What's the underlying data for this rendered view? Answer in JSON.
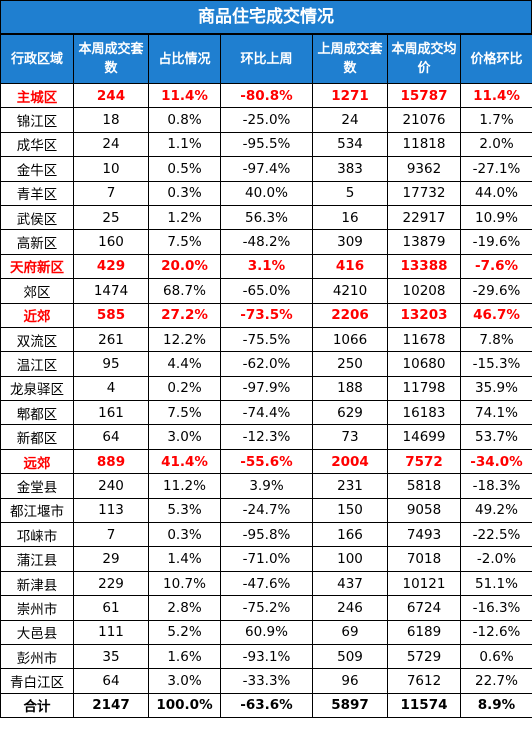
{
  "title": "商品住宅成交情况",
  "headers": [
    "行政区域",
    "本周成交套数",
    "占比情况",
    "环比上周",
    "上周成交套数",
    "本周成交均价",
    "价格环比"
  ],
  "rows": [
    {
      "name": "主城区",
      "units": "244",
      "share": "11.4%",
      "wow": "-80.8%",
      "last_units": "1271",
      "avg_price": "15787",
      "price_chg": "11.4%",
      "highlight": true
    },
    {
      "name": "锦江区",
      "units": "18",
      "share": "0.8%",
      "wow": "-25.0%",
      "last_units": "24",
      "avg_price": "21076",
      "price_chg": "1.7%",
      "highlight": false
    },
    {
      "name": "成华区",
      "units": "24",
      "share": "1.1%",
      "wow": "-95.5%",
      "last_units": "534",
      "avg_price": "11818",
      "price_chg": "2.0%",
      "highlight": false
    },
    {
      "name": "金牛区",
      "units": "10",
      "share": "0.5%",
      "wow": "-97.4%",
      "last_units": "383",
      "avg_price": "9362",
      "price_chg": "-27.1%",
      "highlight": false
    },
    {
      "name": "青羊区",
      "units": "7",
      "share": "0.3%",
      "wow": "40.0%",
      "last_units": "5",
      "avg_price": "17732",
      "price_chg": "44.0%",
      "highlight": false
    },
    {
      "name": "武侯区",
      "units": "25",
      "share": "1.2%",
      "wow": "56.3%",
      "last_units": "16",
      "avg_price": "22917",
      "price_chg": "10.9%",
      "highlight": false
    },
    {
      "name": "高新区",
      "units": "160",
      "share": "7.5%",
      "wow": "-48.2%",
      "last_units": "309",
      "avg_price": "13879",
      "price_chg": "-19.6%",
      "highlight": false
    },
    {
      "name": "天府新区",
      "units": "429",
      "share": "20.0%",
      "wow": "3.1%",
      "last_units": "416",
      "avg_price": "13388",
      "price_chg": "-7.6%",
      "highlight": true
    },
    {
      "name": "郊区",
      "units": "1474",
      "share": "68.7%",
      "wow": "-65.0%",
      "last_units": "4210",
      "avg_price": "10208",
      "price_chg": "-29.6%",
      "highlight": false
    },
    {
      "name": "近郊",
      "units": "585",
      "share": "27.2%",
      "wow": "-73.5%",
      "last_units": "2206",
      "avg_price": "13203",
      "price_chg": "46.7%",
      "highlight": true
    },
    {
      "name": "双流区",
      "units": "261",
      "share": "12.2%",
      "wow": "-75.5%",
      "last_units": "1066",
      "avg_price": "11678",
      "price_chg": "7.8%",
      "highlight": false
    },
    {
      "name": "温江区",
      "units": "95",
      "share": "4.4%",
      "wow": "-62.0%",
      "last_units": "250",
      "avg_price": "10680",
      "price_chg": "-15.3%",
      "highlight": false
    },
    {
      "name": "龙泉驿区",
      "units": "4",
      "share": "0.2%",
      "wow": "-97.9%",
      "last_units": "188",
      "avg_price": "11798",
      "price_chg": "35.9%",
      "highlight": false
    },
    {
      "name": "郫都区",
      "units": "161",
      "share": "7.5%",
      "wow": "-74.4%",
      "last_units": "629",
      "avg_price": "16183",
      "price_chg": "74.1%",
      "highlight": false
    },
    {
      "name": "新都区",
      "units": "64",
      "share": "3.0%",
      "wow": "-12.3%",
      "last_units": "73",
      "avg_price": "14699",
      "price_chg": "53.7%",
      "highlight": false
    },
    {
      "name": "远郊",
      "units": "889",
      "share": "41.4%",
      "wow": "-55.6%",
      "last_units": "2004",
      "avg_price": "7572",
      "price_chg": "-34.0%",
      "highlight": true
    },
    {
      "name": "金堂县",
      "units": "240",
      "share": "11.2%",
      "wow": "3.9%",
      "last_units": "231",
      "avg_price": "5818",
      "price_chg": "-18.3%",
      "highlight": false
    },
    {
      "name": "都江堰市",
      "units": "113",
      "share": "5.3%",
      "wow": "-24.7%",
      "last_units": "150",
      "avg_price": "9058",
      "price_chg": "49.2%",
      "highlight": false
    },
    {
      "name": "邛崃市",
      "units": "7",
      "share": "0.3%",
      "wow": "-95.8%",
      "last_units": "166",
      "avg_price": "7493",
      "price_chg": "-22.5%",
      "highlight": false
    },
    {
      "name": "蒲江县",
      "units": "29",
      "share": "1.4%",
      "wow": "-71.0%",
      "last_units": "100",
      "avg_price": "7018",
      "price_chg": "-2.0%",
      "highlight": false
    },
    {
      "name": "新津县",
      "units": "229",
      "share": "10.7%",
      "wow": "-47.6%",
      "last_units": "437",
      "avg_price": "10121",
      "price_chg": "51.1%",
      "highlight": false
    },
    {
      "name": "崇州市",
      "units": "61",
      "share": "2.8%",
      "wow": "-75.2%",
      "last_units": "246",
      "avg_price": "6724",
      "price_chg": "-16.3%",
      "highlight": false
    },
    {
      "name": "大邑县",
      "units": "111",
      "share": "5.2%",
      "wow": "60.9%",
      "last_units": "69",
      "avg_price": "6189",
      "price_chg": "-12.6%",
      "highlight": false
    },
    {
      "name": "彭州市",
      "units": "35",
      "share": "1.6%",
      "wow": "-93.1%",
      "last_units": "509",
      "avg_price": "5729",
      "price_chg": "0.6%",
      "highlight": false
    },
    {
      "name": "青白江区",
      "units": "64",
      "share": "3.0%",
      "wow": "-33.3%",
      "last_units": "96",
      "avg_price": "7612",
      "price_chg": "22.7%",
      "highlight": false
    }
  ],
  "total": {
    "name": "合计",
    "units": "2147",
    "share": "100.0%",
    "wow": "-63.6%",
    "last_units": "5897",
    "avg_price": "11574",
    "price_chg": "8.9%"
  }
}
